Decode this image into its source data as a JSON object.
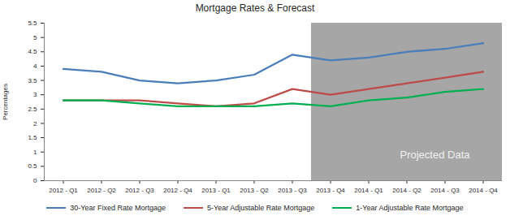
{
  "chart_data": {
    "type": "line",
    "title": "Mortgage Rates & Forecast",
    "y_label": "Percentages",
    "categories": [
      "2012 - Q1",
      "2012 - Q2",
      "2012 - Q3",
      "2012 - Q4",
      "2013 - Q1",
      "2013 - Q2",
      "2013 - Q3",
      "2013 - Q4",
      "2014 - Q1",
      "2014 - Q2",
      "2014 - Q3",
      "2014 - Q4"
    ],
    "series": [
      {
        "name": "30-Year Fixed Rate Mortgage",
        "color": "#4A7EBB",
        "values": [
          3.9,
          3.8,
          3.5,
          3.4,
          3.5,
          3.7,
          4.4,
          4.2,
          4.3,
          4.5,
          4.6,
          4.8
        ]
      },
      {
        "name": "5-Year Adjustable Rate Mortgage",
        "color": "#BE4B48",
        "values": [
          2.8,
          2.8,
          2.8,
          2.7,
          2.6,
          2.7,
          3.2,
          3.0,
          3.2,
          3.4,
          3.6,
          3.8
        ]
      },
      {
        "name": "1-Year Adjustable Rate Mortgage",
        "color": "#00B050",
        "values": [
          2.8,
          2.8,
          2.7,
          2.6,
          2.6,
          2.6,
          2.7,
          2.6,
          2.8,
          2.9,
          3.1,
          3.2
        ]
      }
    ],
    "ylim": [
      0,
      5.5
    ],
    "yticks": [
      0,
      0.5,
      1,
      1.5,
      2,
      2.5,
      3,
      3.5,
      4,
      4.5,
      5,
      5.5
    ],
    "grid": false,
    "legend": "bottom",
    "projected_region": {
      "label": "Projected Data",
      "start": "2013 - Q4"
    }
  }
}
